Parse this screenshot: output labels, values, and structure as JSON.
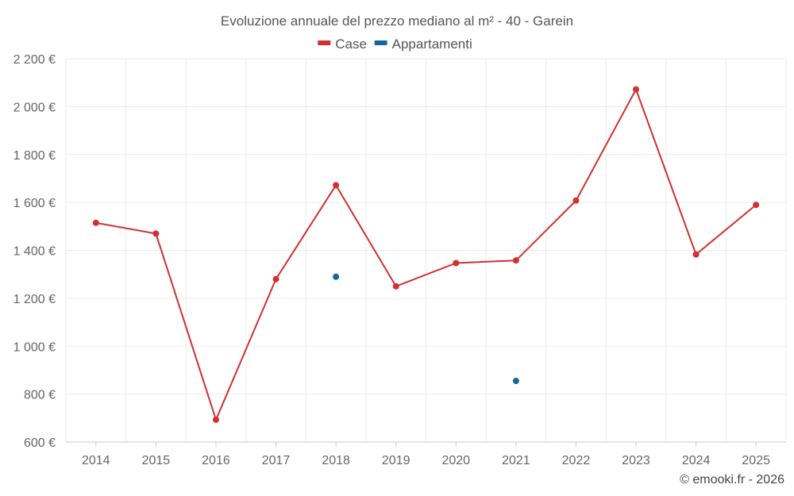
{
  "chart_data": {
    "type": "line",
    "title": "Evoluzione annuale del prezzo mediano al m² - 40 - Garein",
    "categories": [
      "2014",
      "2015",
      "2016",
      "2017",
      "2018",
      "2019",
      "2020",
      "2021",
      "2022",
      "2023",
      "2024",
      "2025"
    ],
    "series": [
      {
        "name": "Case",
        "color": "#d32f2f",
        "values": [
          1515,
          1470,
          693,
          1280,
          1672,
          1250,
          1347,
          1358,
          1608,
          2072,
          1383,
          1590
        ]
      },
      {
        "name": "Appartamenti",
        "color": "#1565a0",
        "values": [
          null,
          null,
          null,
          null,
          1290,
          null,
          null,
          855,
          null,
          null,
          null,
          null
        ]
      }
    ],
    "ylim": [
      600,
      2200
    ],
    "yticks": [
      600,
      800,
      1000,
      1200,
      1400,
      1600,
      1800,
      2000,
      2200
    ],
    "ytick_labels": [
      "600 €",
      "800 €",
      "1 000 €",
      "1 200 €",
      "1 400 €",
      "1 600 €",
      "1 800 €",
      "2 000 €",
      "2 200 €"
    ],
    "xlabel": "",
    "ylabel": "",
    "grid": true,
    "legend_position": "top-center"
  },
  "credit": "© emooki.fr - 2026"
}
